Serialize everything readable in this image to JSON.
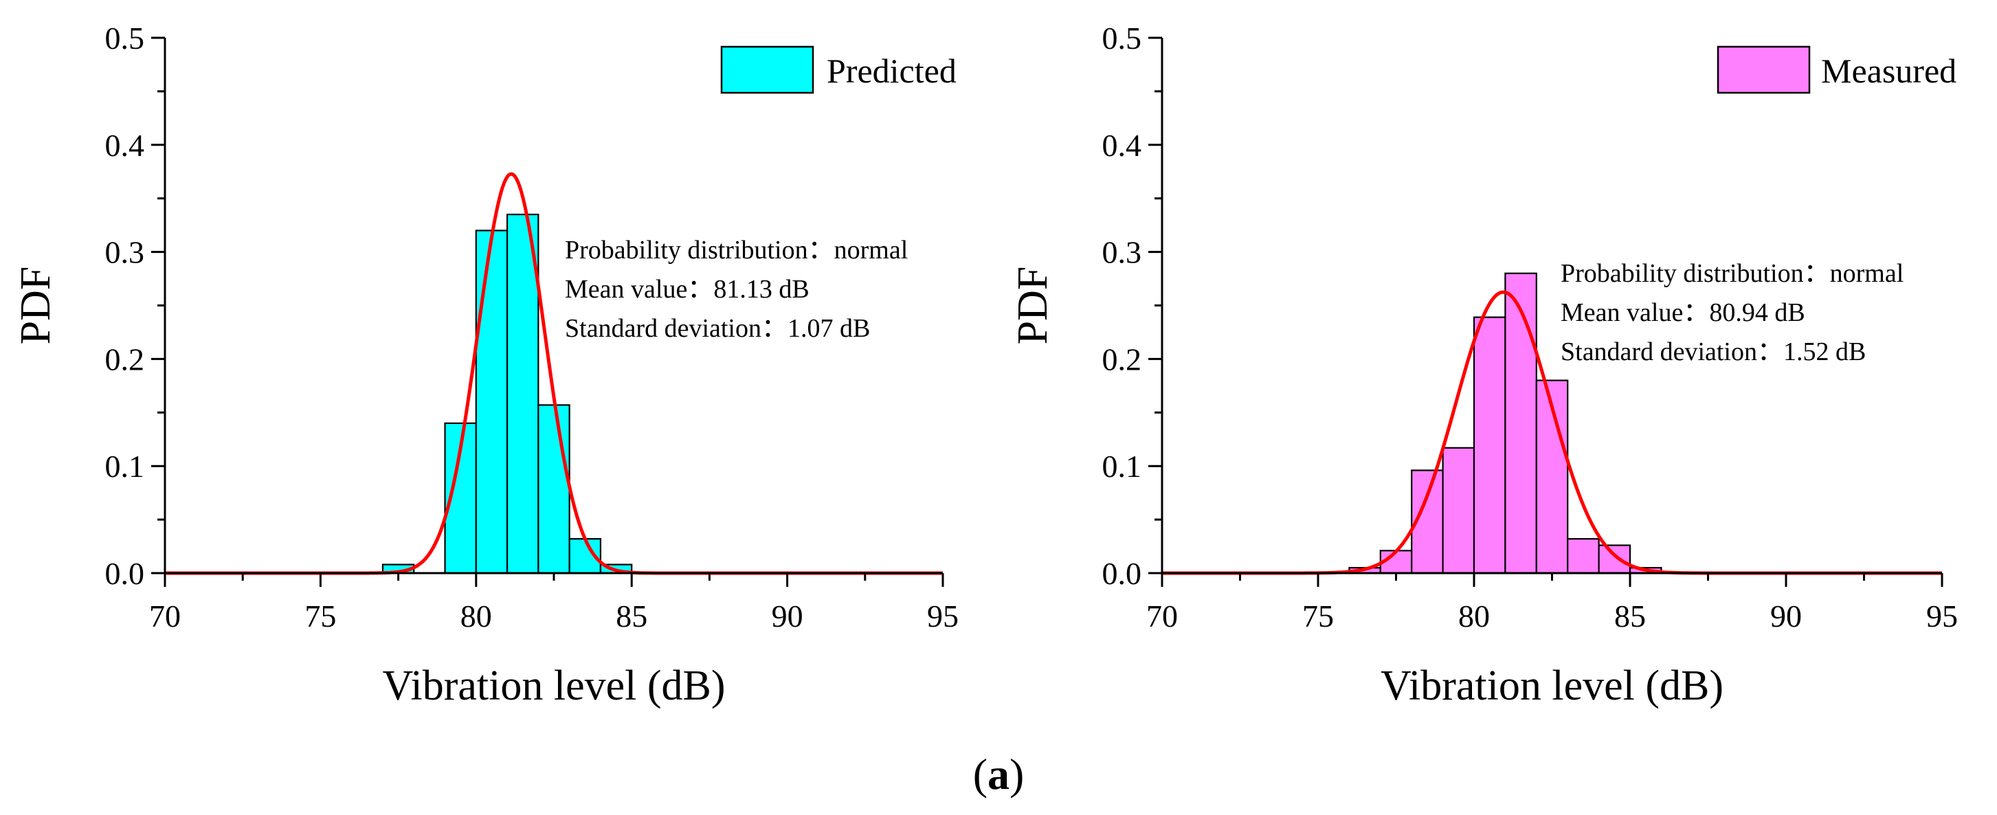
{
  "caption": {
    "prefix": "(",
    "letter": "a",
    "suffix": ")"
  },
  "chart_data": [
    {
      "type": "bar",
      "title": "",
      "xlabel": "Vibration level (dB)",
      "ylabel": "PDF",
      "xlim": [
        70,
        95
      ],
      "ylim": [
        0,
        0.5
      ],
      "xticks": [
        70,
        75,
        80,
        85,
        90,
        95
      ],
      "yticks": [
        0.0,
        0.1,
        0.2,
        0.3,
        0.4,
        0.5
      ],
      "ytick_labels": [
        "0.0",
        "0.1",
        "0.2",
        "0.3",
        "0.4",
        "0.5"
      ],
      "bar_color": "#00ffff",
      "bin_edges": [
        77,
        78,
        79,
        80,
        81,
        82,
        83,
        84,
        85
      ],
      "values": [
        0.008,
        0,
        0.14,
        0.32,
        0.335,
        0.157,
        0.032,
        0.008
      ],
      "legend": {
        "label": "Predicted",
        "position": "top-right"
      },
      "fit": {
        "distribution": "normal",
        "mean": 81.13,
        "std": 1.07,
        "color": "#ff0000"
      },
      "stats": [
        {
          "label": "Probability distribution：",
          "value": "normal"
        },
        {
          "label": "Mean value：",
          "value": "81.13 dB"
        },
        {
          "label": "Standard deviation：",
          "value": "1.07 dB"
        }
      ]
    },
    {
      "type": "bar",
      "title": "",
      "xlabel": "Vibration level (dB)",
      "ylabel": "PDF",
      "xlim": [
        70,
        95
      ],
      "ylim": [
        0,
        0.5
      ],
      "xticks": [
        70,
        75,
        80,
        85,
        90,
        95
      ],
      "yticks": [
        0.0,
        0.1,
        0.2,
        0.3,
        0.4,
        0.5
      ],
      "ytick_labels": [
        "0.0",
        "0.1",
        "0.2",
        "0.3",
        "0.4",
        "0.5"
      ],
      "bar_color": "#ff80ff",
      "bin_edges": [
        76,
        77,
        78,
        79,
        80,
        81,
        82,
        83,
        84,
        85,
        86
      ],
      "values": [
        0.005,
        0.021,
        0.096,
        0.117,
        0.239,
        0.28,
        0.18,
        0.032,
        0.026,
        0.005
      ],
      "legend": {
        "label": "Measured",
        "position": "top-right"
      },
      "fit": {
        "distribution": "normal",
        "mean": 80.94,
        "std": 1.52,
        "color": "#ff0000"
      },
      "stats": [
        {
          "label": "Probability distribution：",
          "value": "normal"
        },
        {
          "label": "Mean value：",
          "value": "80.94 dB"
        },
        {
          "label": "Standard deviation：",
          "value": "1.52 dB"
        }
      ]
    }
  ]
}
